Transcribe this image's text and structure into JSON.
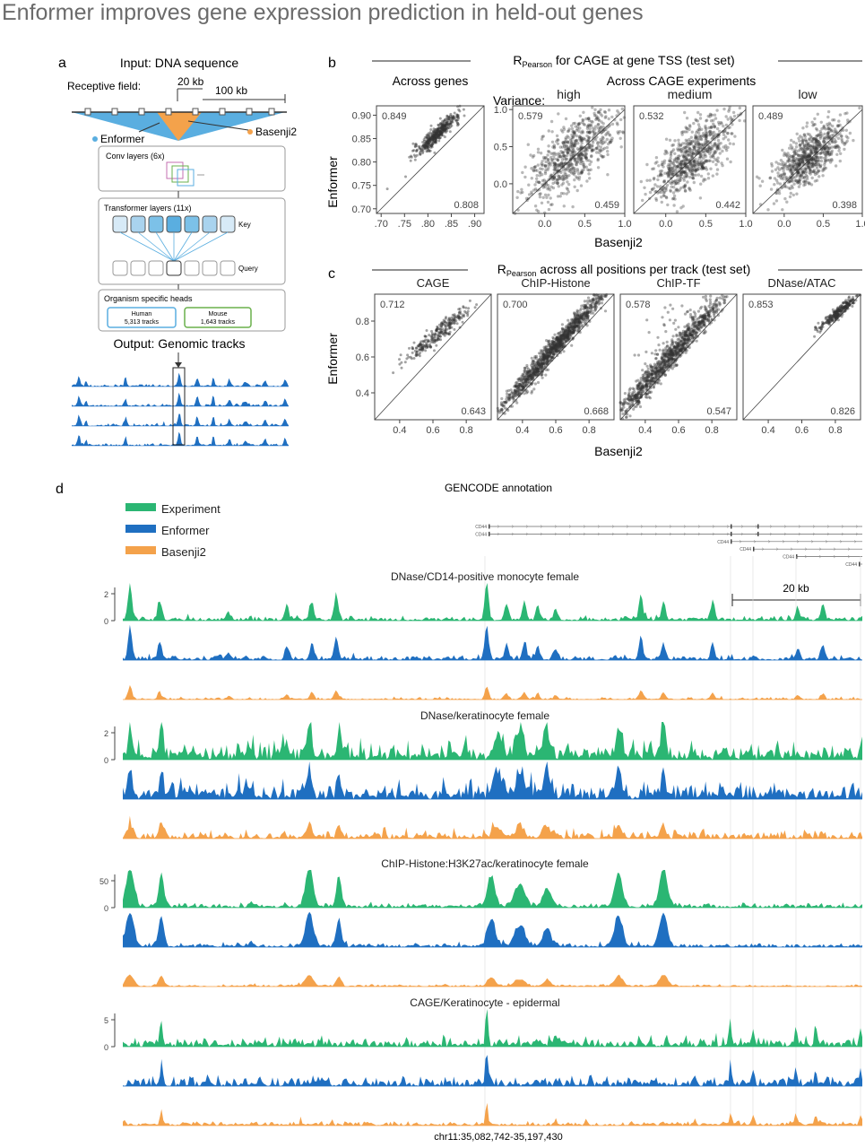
{
  "title": "Enformer improves gene expression prediction in held-out genes",
  "colors": {
    "experiment": "#2bb673",
    "enformer": "#1f6fc1",
    "basenji": "#f4a24b",
    "receptive_enformer": "#5aaee0",
    "receptive_basenji": "#f4a24b",
    "scatter": "#333333"
  },
  "panel_a": {
    "label": "a",
    "input_title": "Input: DNA sequence",
    "receptive_field_label": "Receptive field:",
    "scale_small": "20 kb",
    "scale_large": "100 kb",
    "enformer_label": "Enformer",
    "basenji_label": "Basenji2",
    "conv_label": "Conv layers (6x)",
    "transformer_label": "Transformer layers (11x)",
    "key_label": "Key",
    "query_label": "Query",
    "heads_label": "Organism specific heads",
    "human_label": "Human",
    "human_tracks": "5,313 tracks",
    "mouse_label": "Mouse",
    "mouse_tracks": "1,643 tracks",
    "output_title": "Output: Genomic tracks"
  },
  "panel_b": {
    "label": "b",
    "title_main": "R",
    "title_sub": "Pearson",
    "title_rest": " for CAGE at gene TSS (test set)",
    "left_title": "Across genes",
    "right_title": "Across CAGE experiments",
    "variance_label": "Variance:",
    "ylabel": "Enformer",
    "xlabel": "Basenji2"
  },
  "panel_c": {
    "label": "c",
    "title_main": "R",
    "title_sub": "Pearson",
    "title_rest": " across all positions per track (test set)",
    "ylabel": "Enformer",
    "xlabel": "Basenji2"
  },
  "chart_data": [
    {
      "type": "scatter",
      "title": "Across genes",
      "ylabel": "Enformer",
      "xlim": [
        0.69,
        0.92
      ],
      "ylim": [
        0.69,
        0.92
      ],
      "xticks": [
        ".70",
        ".75",
        ".80",
        ".85",
        ".90"
      ],
      "yticks": [
        "0.70",
        "0.75",
        "0.80",
        "0.85",
        "0.90"
      ],
      "r_enformer": "0.849",
      "r_basenji": "0.808",
      "center": [
        0.82,
        0.86
      ],
      "spread": 0.025
    },
    {
      "type": "scatter",
      "title": "high",
      "xlim": [
        -0.4,
        1.0
      ],
      "ylim": [
        -0.4,
        1.05
      ],
      "xticks": [
        "0.0",
        "0.5",
        "1.0"
      ],
      "yticks": [
        "0.0",
        "0.5",
        "1.0"
      ],
      "r_enformer": "0.579",
      "r_basenji": "0.459",
      "center": [
        0.35,
        0.4
      ],
      "spread": 0.28
    },
    {
      "type": "scatter",
      "title": "medium",
      "xlim": [
        -0.4,
        1.0
      ],
      "ylim": [
        -0.4,
        1.05
      ],
      "xticks": [
        "0.0",
        "0.5",
        "1.0"
      ],
      "r_enformer": "0.532",
      "r_basenji": "0.442",
      "center": [
        0.35,
        0.38
      ],
      "spread": 0.25
    },
    {
      "type": "scatter",
      "title": "low",
      "xlim": [
        -0.4,
        1.0
      ],
      "ylim": [
        -0.4,
        1.05
      ],
      "xticks": [
        "0.0",
        "0.5",
        "1.0"
      ],
      "r_enformer": "0.489",
      "r_basenji": "0.398",
      "center": [
        0.3,
        0.34
      ],
      "spread": 0.22
    },
    {
      "type": "scatter",
      "title": "CAGE",
      "ylabel": "Enformer",
      "xlim": [
        0.25,
        0.95
      ],
      "ylim": [
        0.25,
        0.95
      ],
      "xticks": [
        "0.4",
        "0.6",
        "0.8"
      ],
      "yticks": [
        "0.4",
        "0.6",
        "0.8"
      ],
      "r_enformer": "0.712",
      "r_basenji": "0.643",
      "center": [
        0.62,
        0.72
      ],
      "spread": 0.1
    },
    {
      "type": "scatter",
      "title": "ChIP-Histone",
      "xlim": [
        0.25,
        0.95
      ],
      "ylim": [
        0.25,
        0.95
      ],
      "xticks": [
        "0.4",
        "0.6",
        "0.8"
      ],
      "r_enformer": "0.700",
      "r_basenji": "0.668",
      "center": [
        0.6,
        0.66
      ],
      "spread": 0.17
    },
    {
      "type": "scatter",
      "title": "ChIP-TF",
      "xlim": [
        0.25,
        0.95
      ],
      "ylim": [
        0.25,
        0.95
      ],
      "xticks": [
        "0.4",
        "0.6",
        "0.8"
      ],
      "r_enformer": "0.578",
      "r_basenji": "0.547",
      "center": [
        0.55,
        0.6
      ],
      "spread": 0.17
    },
    {
      "type": "scatter",
      "title": "DNase/ATAC",
      "xlim": [
        0.25,
        0.95
      ],
      "ylim": [
        0.25,
        0.95
      ],
      "xticks": [
        "0.4",
        "0.6",
        "0.8"
      ],
      "r_enformer": "0.853",
      "r_basenji": "0.826",
      "center": [
        0.82,
        0.85
      ],
      "spread": 0.06
    }
  ],
  "panel_d": {
    "label": "d",
    "gencode_title": "GENCODE annotation",
    "legend": [
      {
        "name": "Experiment"
      },
      {
        "name": "Enformer"
      },
      {
        "name": "Basenji2"
      }
    ],
    "genes": [
      "CD44",
      "CD44",
      "CD44",
      "CD44",
      "CD44",
      "CD44"
    ],
    "scale_label": "20 kb",
    "locus": "chr11:35,082,742-35,197,430",
    "tracks": [
      {
        "title": "DNase/CD14-positive monocyte female",
        "yticks": [
          "2",
          "0"
        ]
      },
      {
        "title": "DNase/keratinocyte female",
        "yticks": [
          "2",
          "0"
        ]
      },
      {
        "title": "ChIP-Histone:H3K27ac/keratinocyte female",
        "yticks": [
          "50",
          "0"
        ]
      },
      {
        "title": "CAGE/Keratinocyte - epidermal",
        "yticks": [
          "5",
          "0"
        ]
      }
    ]
  }
}
